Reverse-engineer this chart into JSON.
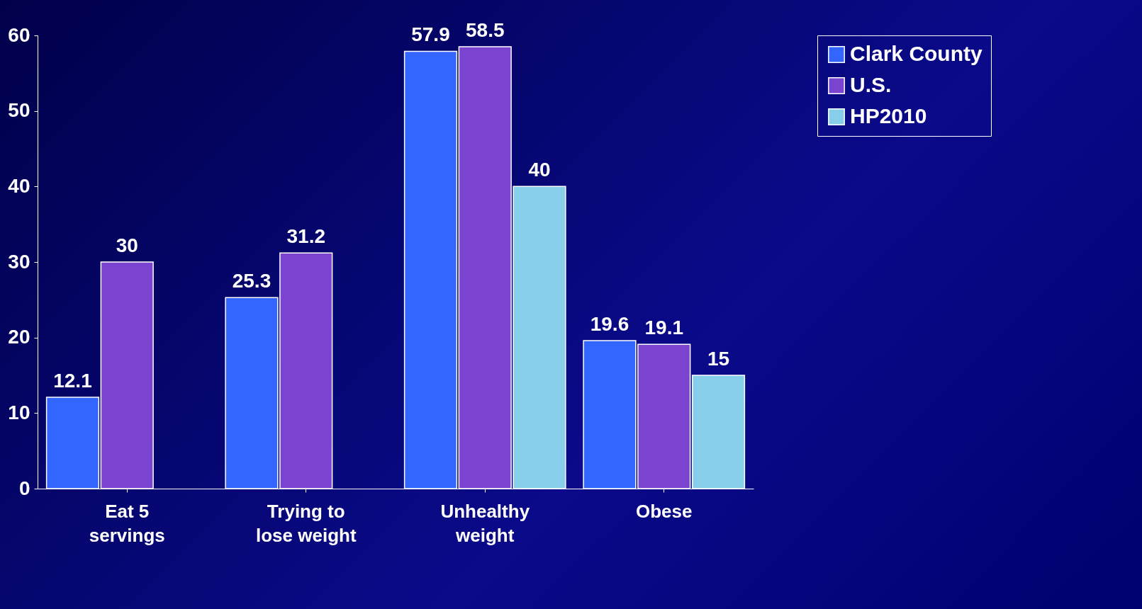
{
  "chart_data": {
    "type": "bar",
    "categories": [
      "Eat 5 servings",
      "Trying to lose weight",
      "Unhealthy weight",
      "Obese"
    ],
    "series": [
      {
        "name": "Clark County",
        "color": "#3366ff",
        "values": [
          12.1,
          25.3,
          57.9,
          19.6
        ]
      },
      {
        "name": "U.S.",
        "color": "#7a44d0",
        "values": [
          30,
          31.2,
          58.5,
          19.1
        ]
      },
      {
        "name": "HP2010",
        "color": "#87ceeb",
        "values": [
          null,
          null,
          40,
          15
        ]
      }
    ],
    "ylim": [
      0,
      60
    ],
    "yticks": [
      0,
      10,
      20,
      30,
      40,
      50,
      60
    ],
    "data_labels": true,
    "legend": "right",
    "grid": false
  }
}
